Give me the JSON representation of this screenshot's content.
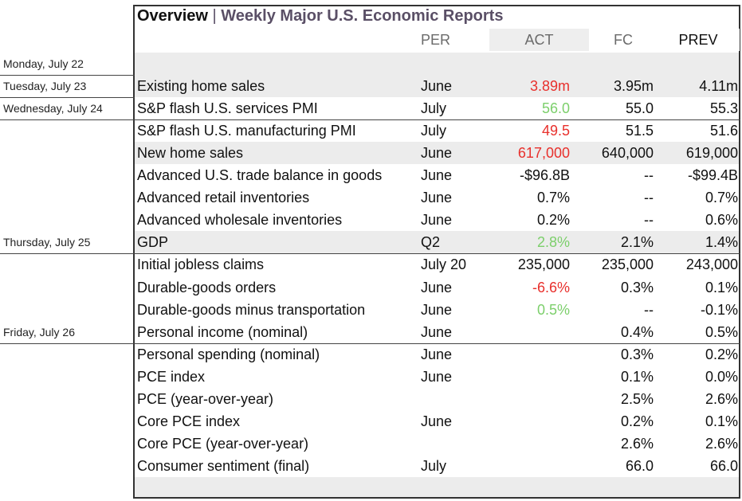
{
  "title": {
    "main": "Overview",
    "separator": "|",
    "sub": "Weekly Major U.S. Economic Reports"
  },
  "columns": {
    "per": "PER",
    "act": "ACT",
    "fc": "FC",
    "prev": "PREV"
  },
  "days": [
    "Monday, July 22",
    "Tuesday, July 23",
    "Wednesday, July 24",
    "Thursday, July 25",
    "Friday, July 26"
  ],
  "rows": [
    {
      "name": "Existing home sales",
      "per": "June",
      "act": "3.89m",
      "fc": "3.95m",
      "prev": "4.11m"
    },
    {
      "name": "S&P flash U.S. services PMI",
      "per": "July",
      "act": "56.0",
      "fc": "55.0",
      "prev": "55.3"
    },
    {
      "name": "S&P flash U.S. manufacturing PMI",
      "per": "July",
      "act": "49.5",
      "fc": "51.5",
      "prev": "51.6"
    },
    {
      "name": "New home sales",
      "per": "June",
      "act": "617,000",
      "fc": "640,000",
      "prev": "619,000"
    },
    {
      "name": "Advanced U.S. trade balance in goods",
      "per": "June",
      "act": "-$96.8B",
      "fc": "--",
      "prev": "-$99.4B"
    },
    {
      "name": "Advanced retail inventories",
      "per": "June",
      "act": "0.7%",
      "fc": "--",
      "prev": "0.7%"
    },
    {
      "name": "Advanced wholesale inventories",
      "per": "June",
      "act": "0.2%",
      "fc": "--",
      "prev": "0.6%"
    },
    {
      "name": "GDP",
      "per": "Q2",
      "act": "2.8%",
      "fc": "2.1%",
      "prev": "1.4%"
    },
    {
      "name": "Initial jobless claims",
      "per": "July 20",
      "act": "235,000",
      "fc": "235,000",
      "prev": "243,000"
    },
    {
      "name": "Durable-goods orders",
      "per": "June",
      "act": "-6.6%",
      "fc": "0.3%",
      "prev": "0.1%"
    },
    {
      "name": "Durable-goods minus transportation",
      "per": "June",
      "act": "0.5%",
      "fc": "--",
      "prev": "-0.1%"
    },
    {
      "name": "Personal income (nominal)",
      "per": "June",
      "act": "",
      "fc": "0.4%",
      "prev": "0.5%"
    },
    {
      "name": "Personal spending (nominal)",
      "per": "June",
      "act": "",
      "fc": "0.3%",
      "prev": "0.2%"
    },
    {
      "name": "PCE index",
      "per": "June",
      "act": "",
      "fc": "0.1%",
      "prev": "0.0%"
    },
    {
      "name": "PCE (year-over-year)",
      "per": "",
      "act": "",
      "fc": "2.5%",
      "prev": "2.6%"
    },
    {
      "name": "Core PCE index",
      "per": "June",
      "act": "",
      "fc": "0.2%",
      "prev": "0.1%"
    },
    {
      "name": "Core PCE (year-over-year)",
      "per": "",
      "act": "",
      "fc": "2.6%",
      "prev": "2.6%"
    },
    {
      "name": "Consumer sentiment (final)",
      "per": "July",
      "act": "",
      "fc": "66.0",
      "prev": "66.0"
    }
  ],
  "colors": {
    "above_forecast": "#7ccf6b",
    "below_forecast": "#e8302c"
  }
}
